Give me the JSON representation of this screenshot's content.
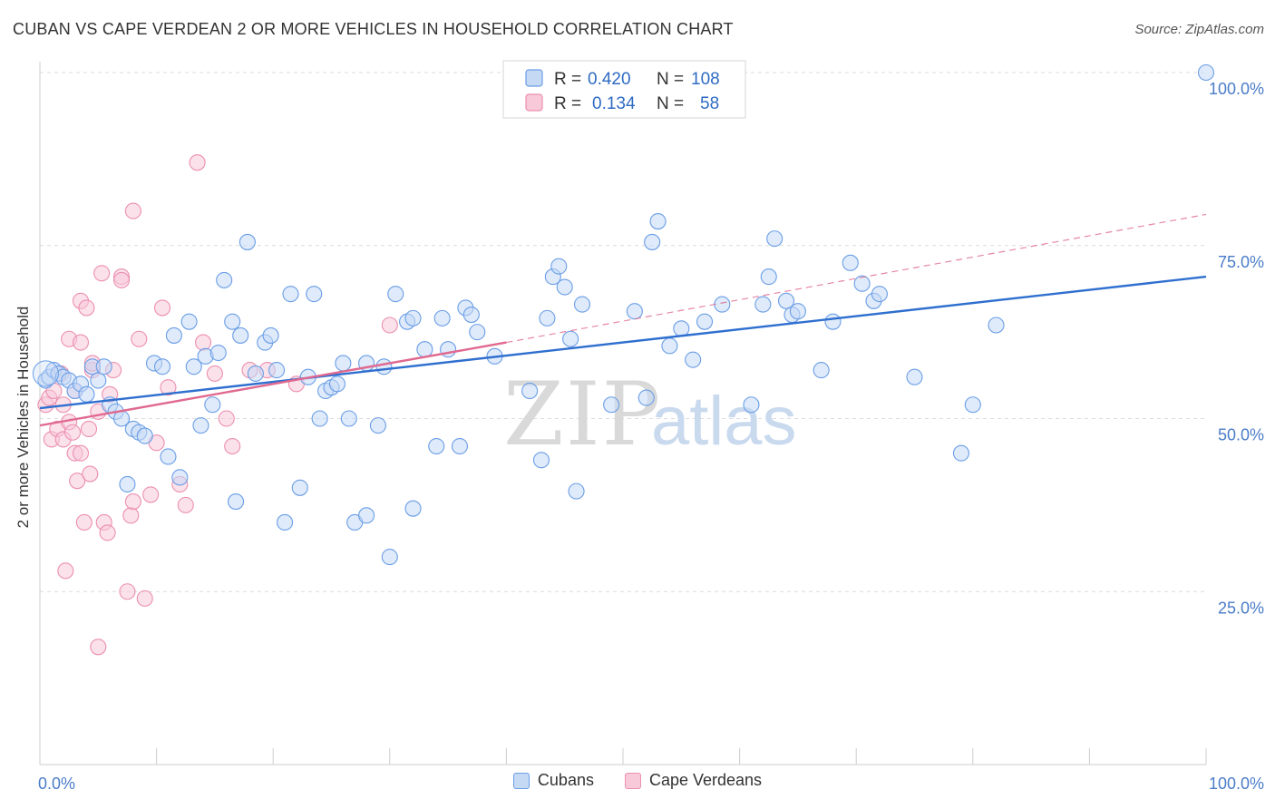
{
  "title": "CUBAN VS CAPE VERDEAN 2 OR MORE VEHICLES IN HOUSEHOLD CORRELATION CHART",
  "source": "Source: ZipAtlas.com",
  "watermark": {
    "zip": "ZIP",
    "atlas": "atlas"
  },
  "colors": {
    "blue": "#6a9ee6",
    "blue_fill": "#c5d9f5",
    "pink": "#ec8fb0",
    "pink_fill": "#f8c9d8",
    "blue_line": "#2f6fcf",
    "pink_line": "#e0698f"
  },
  "legend": {
    "rows": [
      {
        "r_label": "R =",
        "r_value": "0.420",
        "n_label": "N =",
        "n_value": "108"
      },
      {
        "r_label": "R =",
        "r_value": "0.134",
        "n_label": "N =",
        "n_value": "58"
      }
    ]
  },
  "bottom_legend": [
    "Cubans",
    "Cape Verdeans"
  ],
  "chart_data": {
    "type": "scatter",
    "title": "CUBAN VS CAPE VERDEAN 2 OR MORE VEHICLES IN HOUSEHOLD CORRELATION CHART",
    "xlabel": "",
    "ylabel": "2 or more Vehicles in Household",
    "xlim": [
      0,
      100
    ],
    "ylim": [
      0,
      100
    ],
    "x_tick_labels": [
      "0.0%",
      "100.0%"
    ],
    "y_ticks": [
      25,
      50,
      75,
      100
    ],
    "y_tick_labels": [
      "25.0%",
      "50.0%",
      "75.0%",
      "100.0%"
    ],
    "grid": true,
    "legend_position": "top-center",
    "series": [
      {
        "name": "Cubans",
        "r": 0.42,
        "n": 108,
        "trend": {
          "x": [
            0,
            100
          ],
          "y": [
            51.5,
            70.5
          ]
        },
        "points": [
          [
            0.5,
            55.5
          ],
          [
            0.8,
            56
          ],
          [
            1.2,
            57
          ],
          [
            1.6,
            56.5
          ],
          [
            2,
            56
          ],
          [
            2.5,
            55.5
          ],
          [
            3,
            54
          ],
          [
            3.5,
            55
          ],
          [
            4,
            53.5
          ],
          [
            4.5,
            57.5
          ],
          [
            5,
            55.5
          ],
          [
            5.5,
            57.5
          ],
          [
            6,
            52
          ],
          [
            6.5,
            51
          ],
          [
            7,
            50
          ],
          [
            7.5,
            40.5
          ],
          [
            8,
            48.5
          ],
          [
            8.5,
            48
          ],
          [
            9,
            47.5
          ],
          [
            9.8,
            58
          ],
          [
            10.5,
            57.5
          ],
          [
            11,
            44.5
          ],
          [
            11.5,
            62
          ],
          [
            12,
            41.5
          ],
          [
            12.8,
            64
          ],
          [
            13.2,
            57.5
          ],
          [
            13.8,
            49
          ],
          [
            14.2,
            59
          ],
          [
            14.8,
            52
          ],
          [
            15.3,
            59.5
          ],
          [
            15.8,
            70
          ],
          [
            16.5,
            64
          ],
          [
            16.8,
            38
          ],
          [
            17.2,
            62
          ],
          [
            17.8,
            75.5
          ],
          [
            18.5,
            56.5
          ],
          [
            19.3,
            61
          ],
          [
            19.8,
            62
          ],
          [
            20.3,
            57
          ],
          [
            21,
            35
          ],
          [
            21.5,
            68
          ],
          [
            22.3,
            40
          ],
          [
            23,
            56
          ],
          [
            23.5,
            68
          ],
          [
            24,
            50
          ],
          [
            24.5,
            54
          ],
          [
            25,
            54.5
          ],
          [
            25.5,
            55
          ],
          [
            26,
            58
          ],
          [
            26.5,
            50
          ],
          [
            27,
            35
          ],
          [
            28,
            36
          ],
          [
            28,
            58
          ],
          [
            29,
            49
          ],
          [
            29.5,
            57.5
          ],
          [
            30,
            30
          ],
          [
            30.5,
            68
          ],
          [
            31.5,
            64
          ],
          [
            32,
            64.5
          ],
          [
            32,
            37
          ],
          [
            33,
            60
          ],
          [
            34,
            46
          ],
          [
            34.5,
            64.5
          ],
          [
            35,
            60
          ],
          [
            36,
            46
          ],
          [
            36.5,
            66
          ],
          [
            37,
            65
          ],
          [
            37.5,
            62.5
          ],
          [
            39,
            59
          ],
          [
            42,
            54
          ],
          [
            43,
            44
          ],
          [
            43.5,
            64.5
          ],
          [
            44,
            70.5
          ],
          [
            44.5,
            72
          ],
          [
            45,
            69
          ],
          [
            45.5,
            61.5
          ],
          [
            46,
            39.5
          ],
          [
            46.5,
            66.5
          ],
          [
            49,
            52
          ],
          [
            51,
            65.5
          ],
          [
            52,
            53
          ],
          [
            52.5,
            75.5
          ],
          [
            53,
            78.5
          ],
          [
            54,
            60.5
          ],
          [
            55,
            63
          ],
          [
            56,
            58.5
          ],
          [
            57,
            64
          ],
          [
            58.5,
            66.5
          ],
          [
            61,
            52
          ],
          [
            62,
            66.5
          ],
          [
            62.5,
            70.5
          ],
          [
            63,
            76
          ],
          [
            64,
            67
          ],
          [
            64.5,
            65
          ],
          [
            65,
            65.5
          ],
          [
            67,
            57
          ],
          [
            68,
            64
          ],
          [
            69.5,
            72.5
          ],
          [
            70.5,
            69.5
          ],
          [
            71.5,
            67
          ],
          [
            72,
            68
          ],
          [
            75,
            56
          ],
          [
            79,
            45
          ],
          [
            80,
            52
          ],
          [
            82,
            63.5
          ],
          [
            100,
            100
          ]
        ]
      },
      {
        "name": "Cape Verdeans",
        "r": 0.134,
        "n": 58,
        "trend": {
          "x": [
            0,
            40
          ],
          "y": [
            49,
            61
          ]
        },
        "trend_extended": {
          "x": [
            40,
            100
          ],
          "y": [
            61,
            79.5
          ]
        },
        "points": [
          [
            0.5,
            52
          ],
          [
            0.8,
            53
          ],
          [
            1,
            47
          ],
          [
            1.2,
            54
          ],
          [
            1.5,
            48.5
          ],
          [
            1.8,
            56.5
          ],
          [
            2,
            52
          ],
          [
            2,
            47
          ],
          [
            2.2,
            28
          ],
          [
            2.5,
            49.5
          ],
          [
            2.5,
            61.5
          ],
          [
            2.8,
            48
          ],
          [
            3,
            45
          ],
          [
            3,
            54
          ],
          [
            3.2,
            41
          ],
          [
            3.5,
            45
          ],
          [
            3.5,
            61
          ],
          [
            3.5,
            67
          ],
          [
            3.8,
            35
          ],
          [
            4,
            66
          ],
          [
            4.2,
            48.5
          ],
          [
            4.3,
            42
          ],
          [
            4.5,
            57
          ],
          [
            4.5,
            58
          ],
          [
            5,
            51
          ],
          [
            5,
            17
          ],
          [
            5.3,
            71
          ],
          [
            5.5,
            35
          ],
          [
            5.8,
            33.5
          ],
          [
            6,
            53.5
          ],
          [
            6.3,
            57
          ],
          [
            7,
            70.5
          ],
          [
            7,
            70
          ],
          [
            7.5,
            25
          ],
          [
            7.8,
            36
          ],
          [
            8,
            80
          ],
          [
            8,
            38
          ],
          [
            8.5,
            61.5
          ],
          [
            9,
            24
          ],
          [
            9.5,
            39
          ],
          [
            10,
            46.5
          ],
          [
            10.5,
            66
          ],
          [
            11,
            54.5
          ],
          [
            12,
            40.5
          ],
          [
            12.5,
            37.5
          ],
          [
            13.5,
            87
          ],
          [
            14,
            61
          ],
          [
            15,
            56.5
          ],
          [
            16,
            50
          ],
          [
            16.5,
            46
          ],
          [
            18,
            57
          ],
          [
            19.5,
            57
          ],
          [
            22,
            55
          ],
          [
            30,
            63.5
          ]
        ]
      }
    ]
  }
}
